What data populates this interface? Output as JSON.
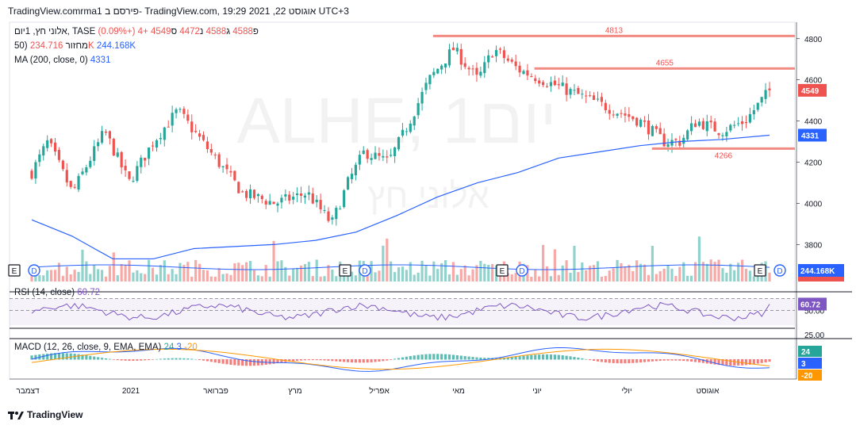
{
  "header": {
    "text": "TradingView.comrma1 פירסם ב- TradingView.com, 19:29 2021 ,22 אוגוסט UTC+3"
  },
  "legend": {
    "symbol": "אלוני חץ, 1יום, TASE",
    "open_label": "פ",
    "open_value": "4588",
    "high_label": "ג",
    "high_value": "4588",
    "low_label": "נ",
    "low_value": "4472",
    "close_label": "ס",
    "close_value": "4549",
    "change": "+4 (+0.09%)",
    "volume_label": "50) מחזור",
    "volume_value1": "234.716K",
    "volume_value2": "244.168K",
    "ma_label": "MA (200, close, 0)",
    "ma_value": "4331",
    "rsi_label": "RSI (14, close)",
    "rsi_value": "60.72",
    "macd_label": "MACD (12, 26, close, 9, EMA, EMA)",
    "macd_value1": "24",
    "macd_value2": "3",
    "macd_value3": "-20"
  },
  "watermark": {
    "line1": "ALHE, 1יום",
    "line2": "אלוני חץ"
  },
  "footer": {
    "brand": "TradingView"
  },
  "colors": {
    "up": "#26a69a",
    "down": "#ef5350",
    "ma": "#2962ff",
    "level": "#f28b82",
    "rsi": "#7e57c2",
    "macd": "#2962ff",
    "signal": "#ff9800"
  },
  "chart_data": {
    "type": "candlestick",
    "y_axis_ticks": [
      3800,
      4000,
      4200,
      4400,
      4600,
      4800
    ],
    "ylim": [
      3620,
      4880
    ],
    "x_axis_labels": [
      "דצמבר",
      "2021",
      "פברואר",
      "מרץ",
      "אפריל",
      "מאי",
      "יוני",
      "יולי",
      "אוגוסט"
    ],
    "price_tags": {
      "close": "4549",
      "ma": "4331",
      "volume": "244.168K",
      "volume_ma": "234.716K"
    },
    "levels": [
      {
        "label": "4813",
        "value": 4813,
        "start": 4.95
      },
      {
        "label": "4655",
        "value": 4655,
        "start": 6.2
      },
      {
        "label": "4266",
        "value": 4266,
        "start": 7.65
      }
    ],
    "price_path": [
      [
        0,
        4150
      ],
      [
        0.2,
        4300
      ],
      [
        0.5,
        4050
      ],
      [
        0.9,
        4350
      ],
      [
        1.2,
        4100
      ],
      [
        1.5,
        4300
      ],
      [
        1.8,
        4450
      ],
      [
        2.2,
        4250
      ],
      [
        2.6,
        4050
      ],
      [
        3.0,
        4000
      ],
      [
        3.4,
        4050
      ],
      [
        3.7,
        3900
      ],
      [
        3.9,
        4100
      ],
      [
        4.1,
        4250
      ],
      [
        4.4,
        4200
      ],
      [
        4.6,
        4350
      ],
      [
        4.9,
        4600
      ],
      [
        5.2,
        4750
      ],
      [
        5.5,
        4600
      ],
      [
        5.7,
        4750
      ],
      [
        6.0,
        4650
      ],
      [
        6.3,
        4600
      ],
      [
        6.6,
        4550
      ],
      [
        6.9,
        4500
      ],
      [
        7.2,
        4450
      ],
      [
        7.5,
        4400
      ],
      [
        7.8,
        4300
      ],
      [
        8.0,
        4300
      ],
      [
        8.2,
        4400
      ],
      [
        8.5,
        4350
      ],
      [
        8.8,
        4400
      ],
      [
        9.1,
        4549
      ]
    ],
    "ma_path": [
      [
        0,
        3920
      ],
      [
        0.5,
        3840
      ],
      [
        1.0,
        3730
      ],
      [
        1.5,
        3730
      ],
      [
        2.0,
        3780
      ],
      [
        2.5,
        3790
      ],
      [
        3.0,
        3800
      ],
      [
        3.5,
        3820
      ],
      [
        4.0,
        3860
      ],
      [
        4.5,
        3940
      ],
      [
        5.0,
        4030
      ],
      [
        5.5,
        4100
      ],
      [
        6.0,
        4150
      ],
      [
        6.5,
        4220
      ],
      [
        7.0,
        4250
      ],
      [
        7.5,
        4280
      ],
      [
        8.0,
        4300
      ],
      [
        8.5,
        4310
      ],
      [
        9.1,
        4331
      ]
    ],
    "rsi": {
      "levels": [
        70,
        50,
        25
      ],
      "tick_labels": [
        "50.00",
        "25.00"
      ],
      "value": "60.72"
    },
    "macd": {
      "macd_value": "3",
      "signal_value": "-20",
      "histogram_value": "24"
    },
    "earnings_markers": [
      0,
      4,
      6,
      9
    ],
    "dividend_markers": [
      0,
      4,
      6,
      9
    ]
  }
}
